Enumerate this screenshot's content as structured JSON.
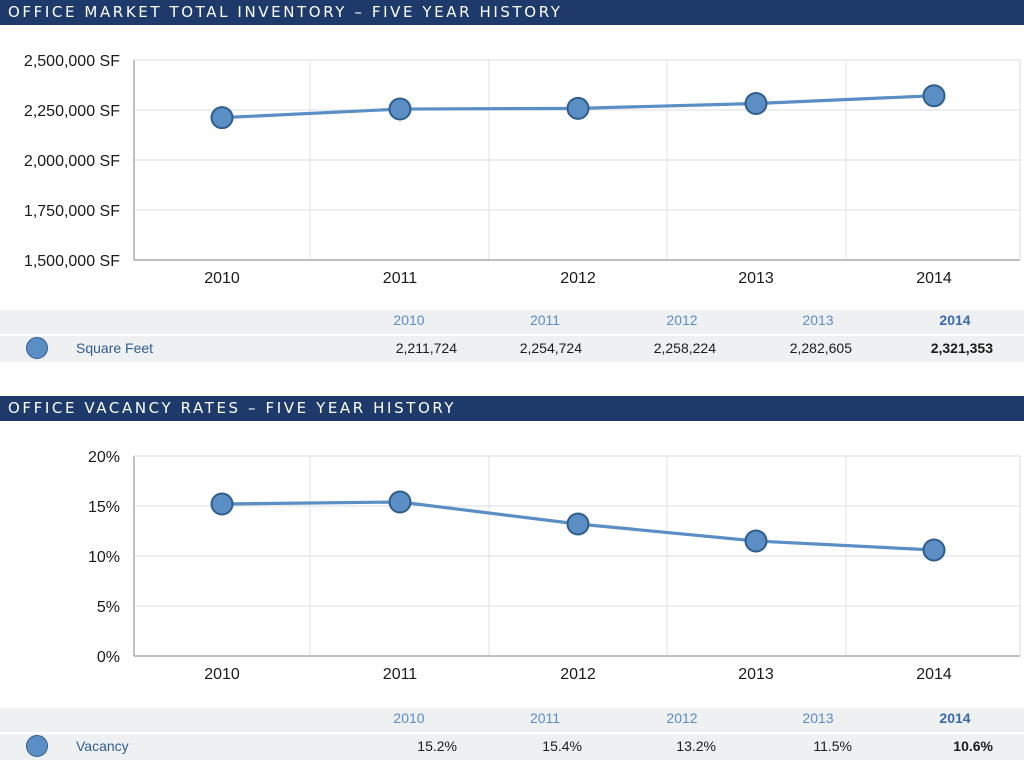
{
  "chart_data": [
    {
      "type": "line",
      "title": "OFFICE MARKET TOTAL INVENTORY – FIVE YEAR HISTORY",
      "categories": [
        "2010",
        "2011",
        "2012",
        "2013",
        "2014"
      ],
      "series": [
        {
          "name": "Square Feet",
          "values": [
            2211724,
            2254724,
            2258224,
            2282605,
            2321353
          ]
        }
      ],
      "ylim": [
        1500000,
        2500000
      ],
      "yticks": [
        2500000,
        2250000,
        2000000,
        1750000,
        1500000
      ],
      "ytick_labels": [
        "2,500,000 SF",
        "2,250,000 SF",
        "2,000,000 SF",
        "1,750,000 SF",
        "1,500,000 SF"
      ],
      "grid": true,
      "table": {
        "years": [
          "2010",
          "2011",
          "2012",
          "2013",
          "2014"
        ],
        "label": "Square Feet",
        "values": [
          "2,211,724",
          "2,254,724",
          "2,258,224",
          "2,282,605",
          "2,321,353"
        ]
      }
    },
    {
      "type": "line",
      "title": "OFFICE VACANCY RATES – FIVE YEAR HISTORY",
      "categories": [
        "2010",
        "2011",
        "2012",
        "2013",
        "2014"
      ],
      "series": [
        {
          "name": "Vacancy",
          "values": [
            15.2,
            15.4,
            13.2,
            11.5,
            10.6
          ]
        }
      ],
      "ylim": [
        0,
        20
      ],
      "yticks": [
        20,
        15,
        10,
        5,
        0
      ],
      "ytick_labels": [
        "20%",
        "15%",
        "10%",
        "5%",
        "0%"
      ],
      "grid": true,
      "table": {
        "years": [
          "2010",
          "2011",
          "2012",
          "2013",
          "2014"
        ],
        "label": "Vacancy",
        "values": [
          "15.2%",
          "15.4%",
          "13.2%",
          "11.5%",
          "10.6%"
        ]
      }
    }
  ],
  "colors": {
    "banner": "#1d3a6a",
    "line": "#5a8ec4",
    "marker_stroke": "#2f5d8c",
    "year_text": "#5a8ec4",
    "grid": "#d9d9d9"
  }
}
